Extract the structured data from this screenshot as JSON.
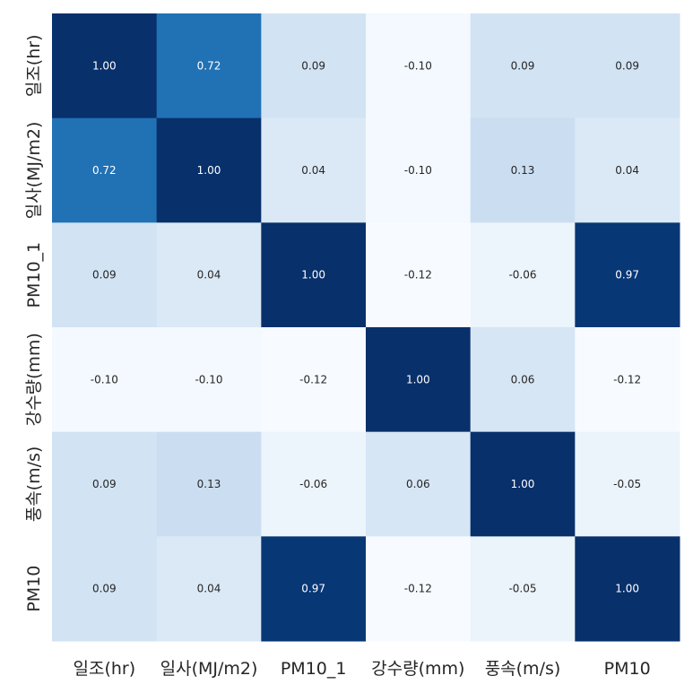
{
  "chart_data": {
    "type": "heatmap",
    "title": "",
    "labels": [
      "일조(hr)",
      "일사(MJ/m2)",
      "PM10_1",
      "강수량(mm)",
      "풍속(m/s)",
      "PM10"
    ],
    "matrix": [
      [
        1.0,
        0.72,
        0.09,
        -0.1,
        0.09,
        0.09
      ],
      [
        0.72,
        1.0,
        0.04,
        -0.1,
        0.13,
        0.04
      ],
      [
        0.09,
        0.04,
        1.0,
        -0.12,
        -0.06,
        0.97
      ],
      [
        -0.1,
        -0.1,
        -0.12,
        1.0,
        0.06,
        -0.12
      ],
      [
        0.09,
        0.13,
        -0.06,
        0.06,
        1.0,
        -0.05
      ],
      [
        0.09,
        0.04,
        0.97,
        -0.12,
        -0.05,
        1.0
      ]
    ],
    "colormap": "Blues",
    "vmin": -0.12,
    "vmax": 1.0,
    "colorbar": false,
    "annotations_format": "0.00"
  },
  "colors": {
    "light_text": "#ffffff",
    "dark_text": "#262626"
  }
}
